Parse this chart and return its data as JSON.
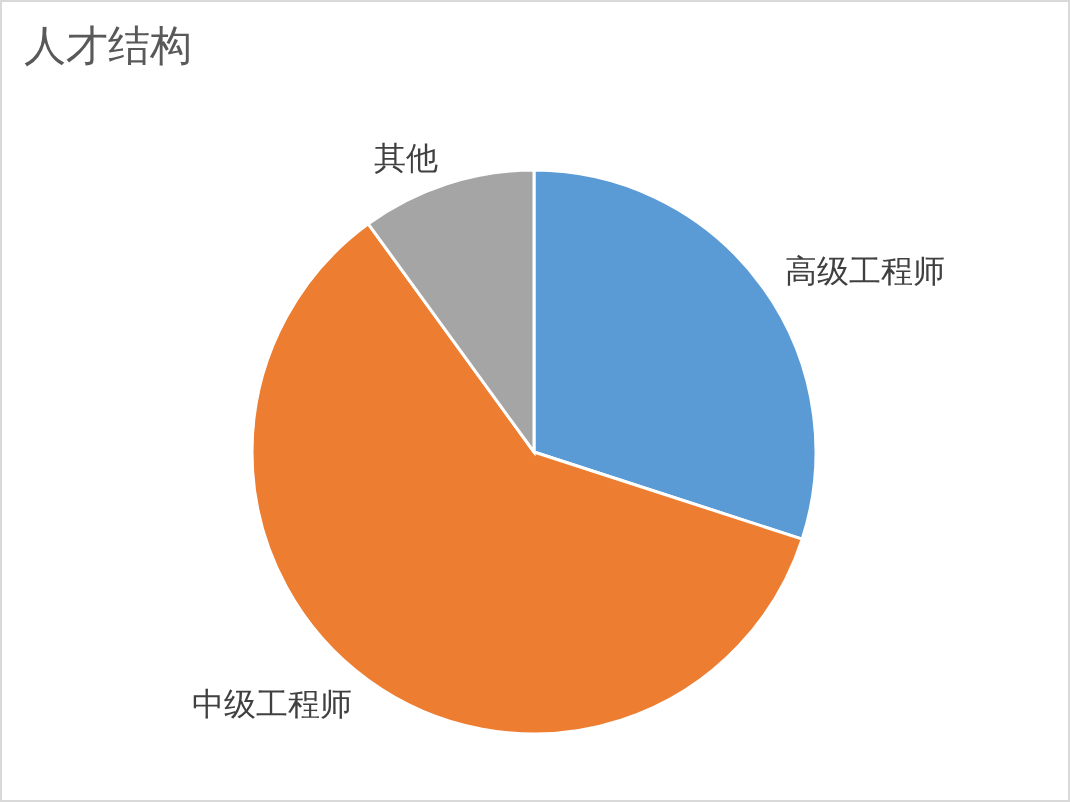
{
  "chart_data": {
    "type": "pie",
    "title": "人才结构",
    "categories": [
      "高级工程师",
      "中级工程师",
      "其他"
    ],
    "values": [
      30,
      60,
      10
    ],
    "colors": [
      "#5b9bd5",
      "#ed7d31",
      "#a5a5a5"
    ]
  }
}
